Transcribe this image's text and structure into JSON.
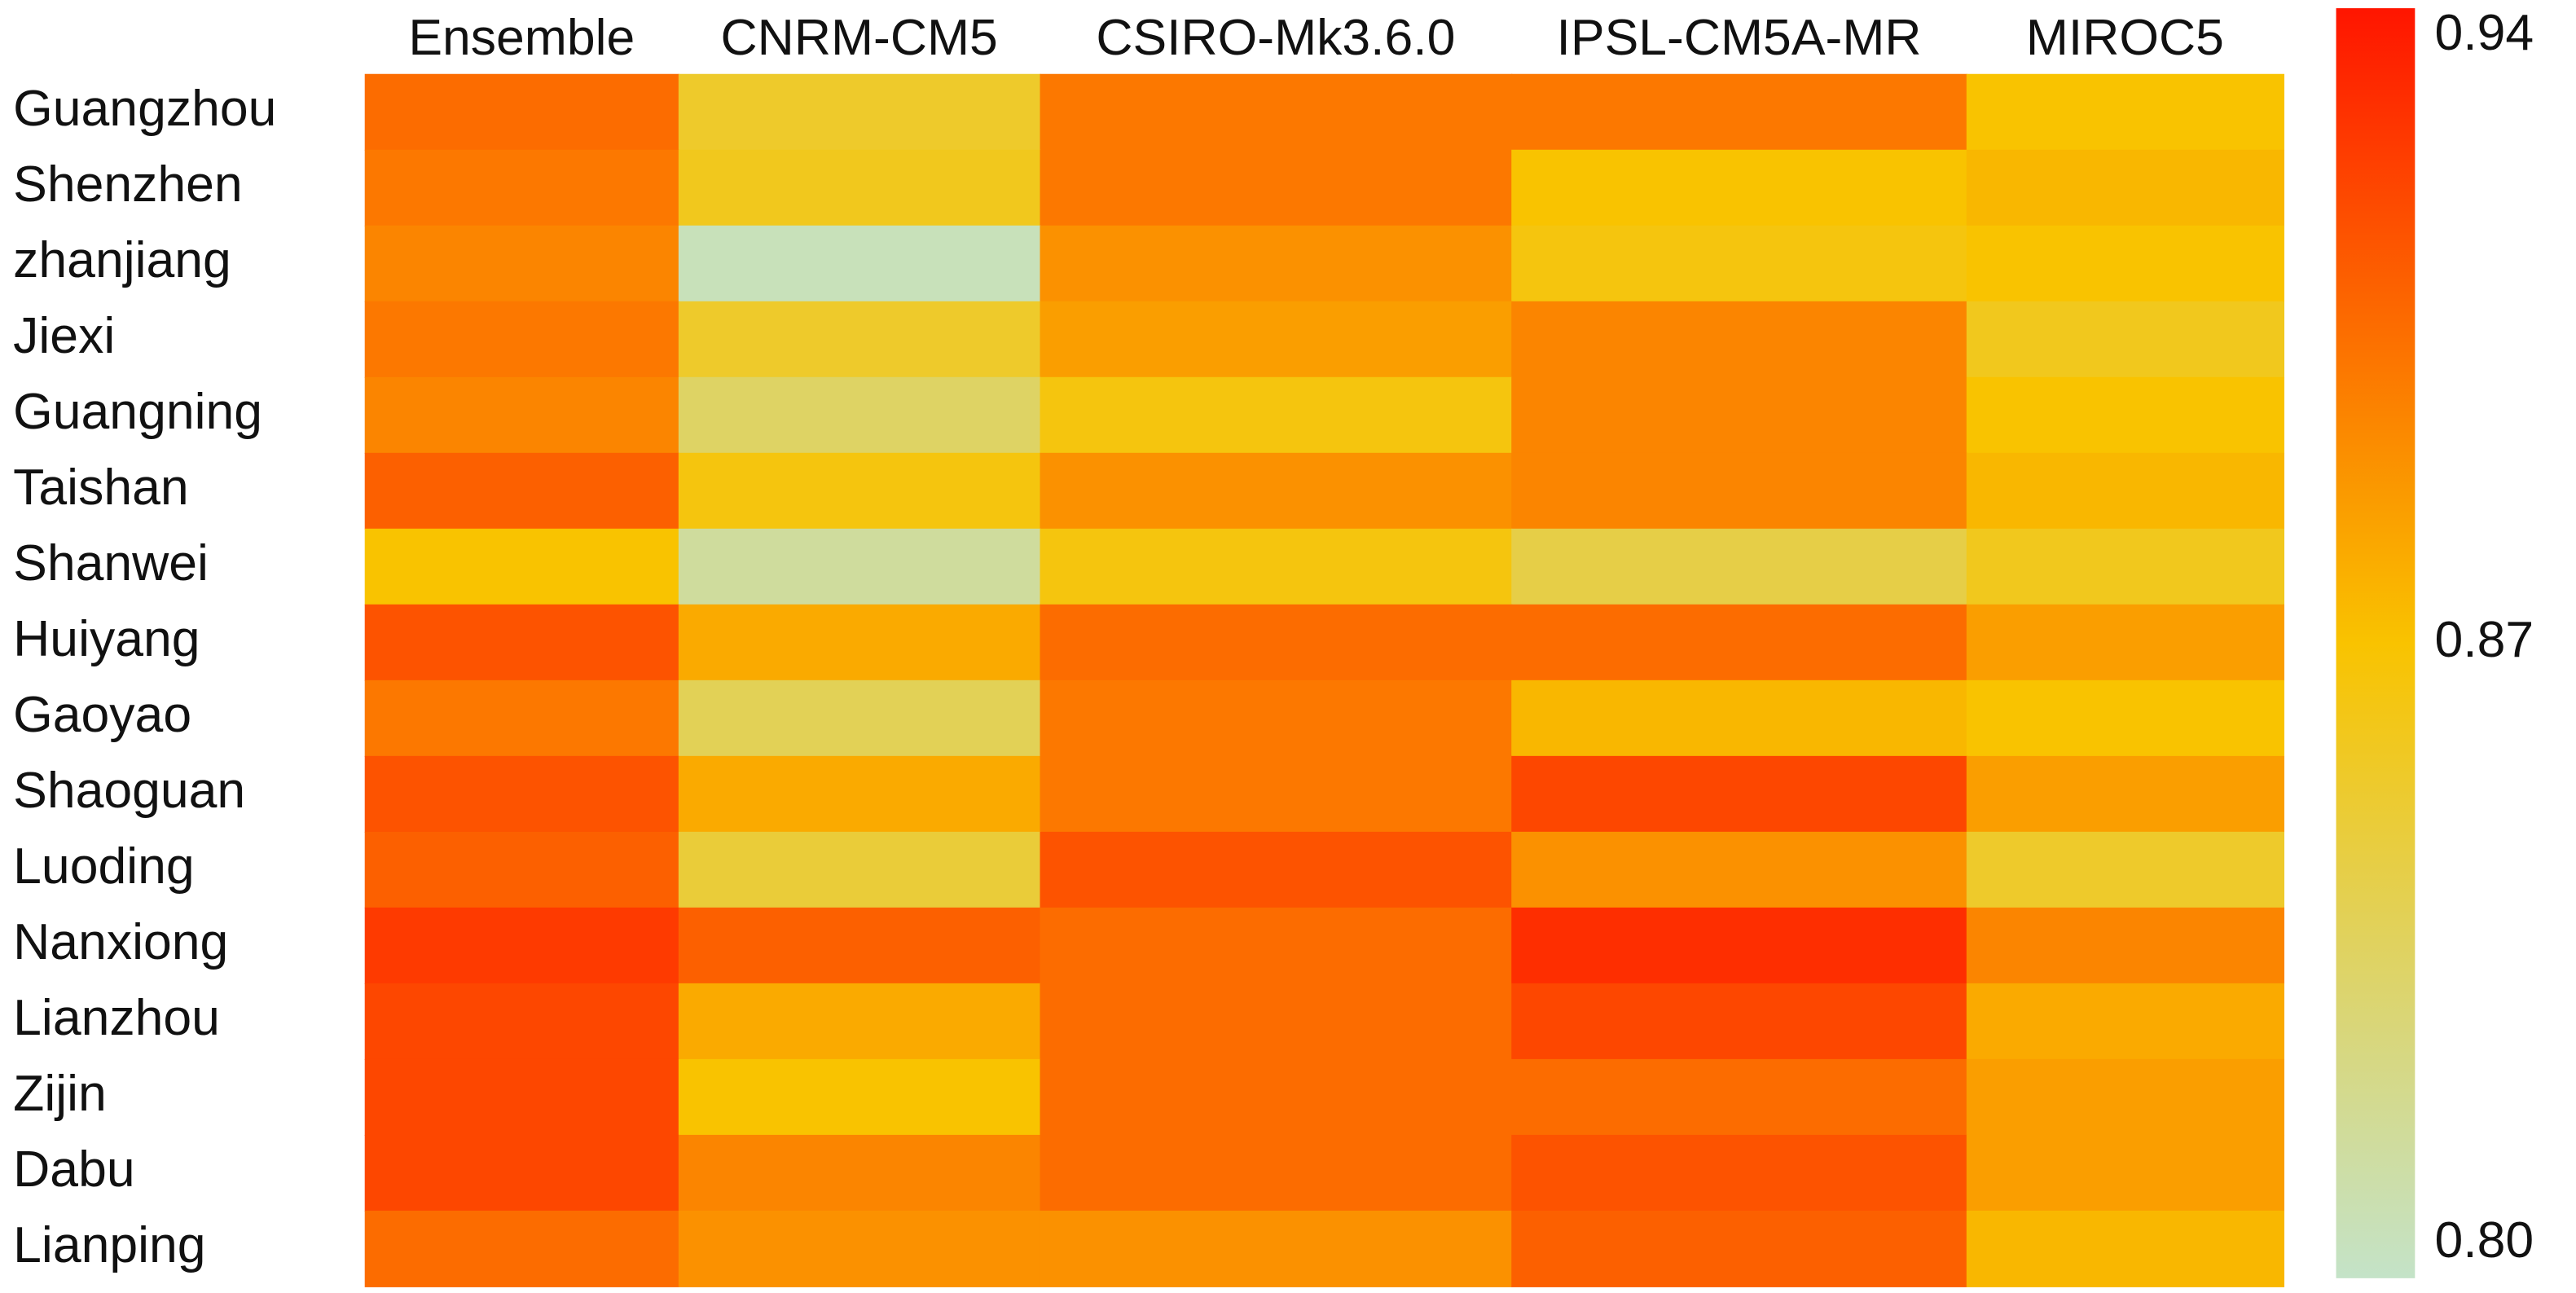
{
  "chart_data": {
    "type": "heatmap",
    "columns": [
      "Ensemble",
      "CNRM-CM5",
      "CSIRO-Mk3.6.0",
      "IPSL-CM5A-MR",
      "MIROC5"
    ],
    "rows": [
      "Guangzhou",
      "Shenzhen",
      "zhanjiang",
      "Jiexi",
      "Guangning",
      "Taishan",
      "Shanwei",
      "Huiyang",
      "Gaoyao",
      "Shaoguan",
      "Luoding",
      "Nanxiong",
      "Lianzhou",
      "Zijin",
      "Dabu",
      "Lianping"
    ],
    "values": [
      [
        0.905,
        0.855,
        0.9,
        0.9,
        0.87
      ],
      [
        0.9,
        0.86,
        0.9,
        0.87,
        0.875
      ],
      [
        0.895,
        0.805,
        0.89,
        0.865,
        0.87
      ],
      [
        0.9,
        0.855,
        0.885,
        0.895,
        0.86
      ],
      [
        0.895,
        0.835,
        0.865,
        0.895,
        0.87
      ],
      [
        0.91,
        0.865,
        0.89,
        0.895,
        0.875
      ],
      [
        0.87,
        0.815,
        0.865,
        0.845,
        0.86
      ],
      [
        0.915,
        0.88,
        0.905,
        0.905,
        0.885
      ],
      [
        0.9,
        0.84,
        0.9,
        0.875,
        0.87
      ],
      [
        0.915,
        0.88,
        0.9,
        0.92,
        0.885
      ],
      [
        0.91,
        0.85,
        0.915,
        0.89,
        0.855
      ],
      [
        0.925,
        0.91,
        0.905,
        0.93,
        0.895
      ],
      [
        0.92,
        0.88,
        0.905,
        0.92,
        0.88
      ],
      [
        0.92,
        0.87,
        0.905,
        0.905,
        0.885
      ],
      [
        0.92,
        0.895,
        0.905,
        0.915,
        0.885
      ],
      [
        0.905,
        0.89,
        0.89,
        0.91,
        0.875
      ]
    ],
    "zlim": [
      0.8,
      0.94
    ],
    "zticks": [
      {
        "value": 0.8,
        "label": "0.80"
      },
      0.87,
      0.94
    ],
    "colors": [
      "#c4e3c8",
      "#f9c300",
      "#ff1500"
    ]
  }
}
